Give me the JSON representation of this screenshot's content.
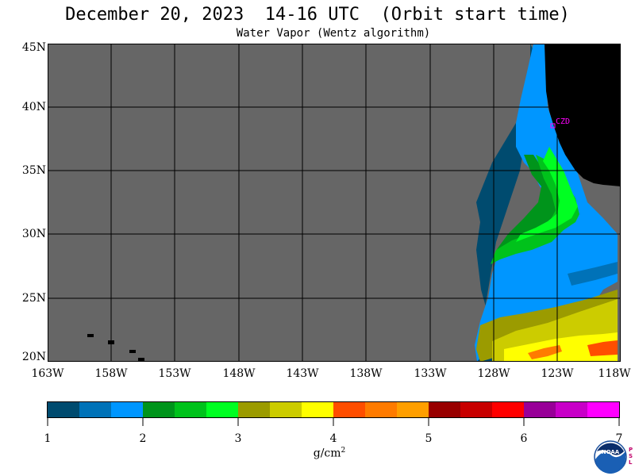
{
  "title": "December 20, 2023  14-16 UTC  (Orbit start time)",
  "subtitle": "Water Vapor (Wentz algorithm)",
  "map": {
    "latitude_labels": [
      "45N",
      "40N",
      "35N",
      "30N",
      "25N",
      "20N"
    ],
    "longitude_labels": [
      "163W",
      "158W",
      "153W",
      "148W",
      "143W",
      "138W",
      "133W",
      "128W",
      "123W",
      "118W"
    ],
    "lat_range": [
      20,
      45
    ],
    "lon_range": [
      -163,
      -118
    ],
    "station_label": "CZD",
    "colors": {
      "no_data": "#666666",
      "land": "#000000",
      "grid": "#000000",
      "station": "#ff00ff"
    }
  },
  "colorbar": {
    "tick_labels": [
      "1",
      "2",
      "3",
      "4",
      "5",
      "6",
      "7"
    ],
    "units": "g/cm",
    "units_superscript": "2",
    "colors": [
      "#004b6f",
      "#0072b8",
      "#0096ff",
      "#00941b",
      "#00c21b",
      "#00ff22",
      "#9b9b00",
      "#cccc00",
      "#ffff00",
      "#ff4e00",
      "#ff7b00",
      "#ff9f00",
      "#980000",
      "#c80000",
      "#ff0000",
      "#980098",
      "#c800c8",
      "#ff00ff"
    ]
  },
  "logo": {
    "text": "NOAA",
    "side_text": "PSL"
  }
}
